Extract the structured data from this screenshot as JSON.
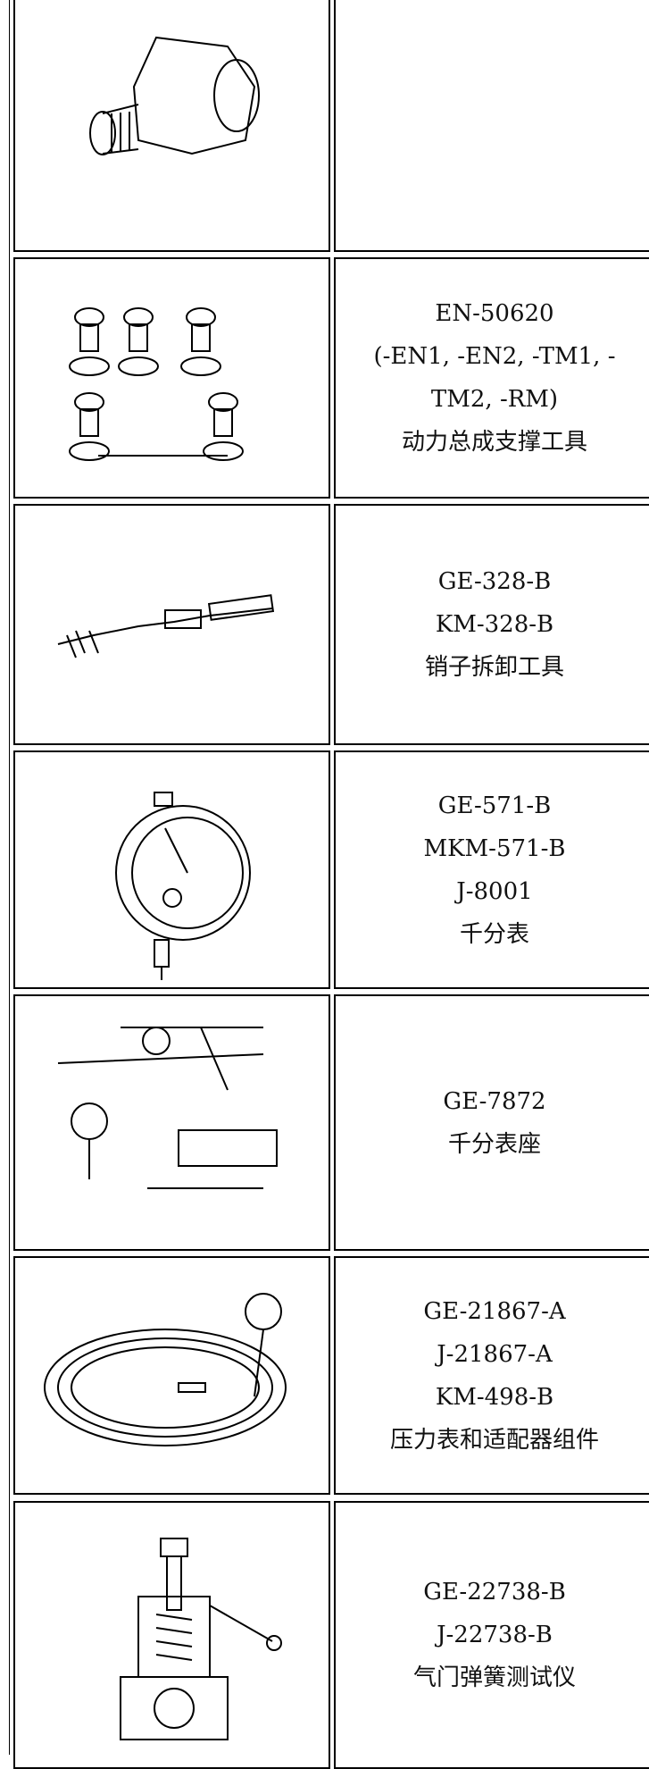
{
  "table": {
    "rows": [
      {
        "lines": [
          "EN-50620",
          "(-EN1, -EN2, -TM1, -",
          "TM2, -RM)",
          "动力总成支撑工具"
        ]
      },
      {
        "lines": [
          "GE-328-B",
          "KM-328-B",
          "销子拆卸工具"
        ]
      },
      {
        "lines": [
          "GE-571-B",
          "MKM-571-B",
          "J-8001",
          "千分表"
        ]
      },
      {
        "lines": [
          "GE-7872",
          "千分表座"
        ]
      },
      {
        "lines": [
          "GE-21867-A",
          "J-21867-A",
          "KM-498-B",
          "压力表和适配器组件"
        ]
      },
      {
        "lines": [
          "GE-22738-B",
          "J-22738-B",
          "气门弹簧测试仪"
        ]
      }
    ]
  }
}
